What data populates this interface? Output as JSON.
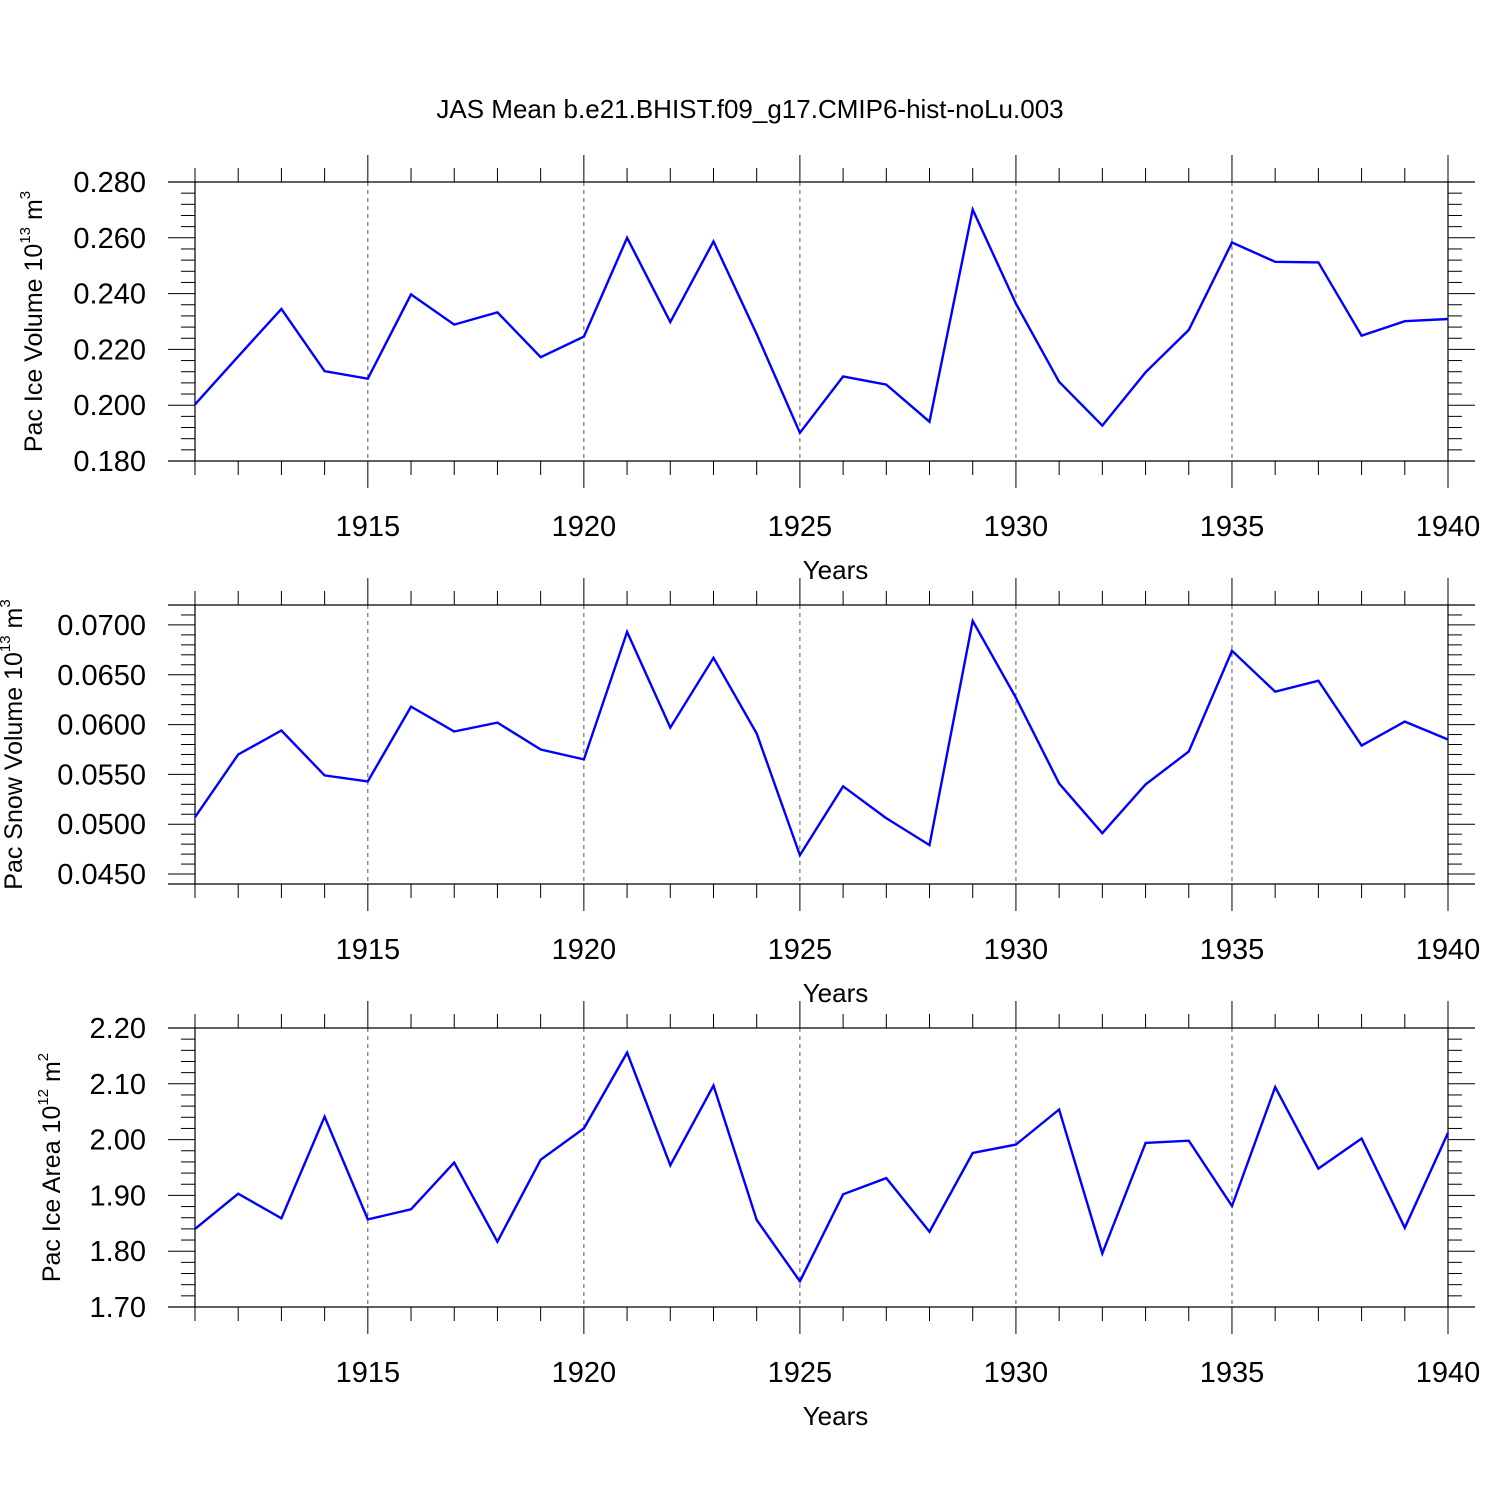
{
  "title": "JAS Mean b.e21.BHIST.f09_g17.CMIP6-hist-noLu.003",
  "colors": {
    "line": "#0000ff",
    "axis": "#000000",
    "grid": "#555555"
  },
  "chart_data": [
    {
      "type": "line",
      "xlabel": "Years",
      "ylabel_main": "Pac Ice Volume 10",
      "ylabel_exp": "13",
      "ylabel_unit": " m",
      "ylabel_unit_exp": "3",
      "xlim": [
        1911,
        1940
      ],
      "ylim": [
        0.18,
        0.28
      ],
      "yticks": [
        0.18,
        0.2,
        0.22,
        0.24,
        0.26,
        0.28
      ],
      "ytick_labels": [
        "0.180",
        "0.200",
        "0.220",
        "0.240",
        "0.260",
        "0.280"
      ],
      "xticks": [
        1915,
        1920,
        1925,
        1930,
        1935,
        1940
      ],
      "xtick_labels": [
        "1915",
        "1920",
        "1925",
        "1930",
        "1935",
        "1940"
      ],
      "grid": "vertical dashed at major x ticks",
      "x": [
        1911,
        1912,
        1913,
        1914,
        1915,
        1916,
        1917,
        1918,
        1919,
        1920,
        1921,
        1922,
        1923,
        1924,
        1925,
        1926,
        1927,
        1928,
        1929,
        1930,
        1931,
        1932,
        1933,
        1934,
        1935,
        1936,
        1937,
        1938,
        1939,
        1940
      ],
      "y": [
        0.2003,
        0.2175,
        0.2345,
        0.2122,
        0.2095,
        0.2397,
        0.2289,
        0.2333,
        0.2172,
        0.2246,
        0.26,
        0.2298,
        0.2587,
        0.2255,
        0.1901,
        0.2103,
        0.2074,
        0.1941,
        0.2701,
        0.2364,
        0.2084,
        0.1927,
        0.2118,
        0.227,
        0.2583,
        0.2514,
        0.2512,
        0.2249,
        0.2301,
        0.2309
      ]
    },
    {
      "type": "line",
      "xlabel": "Years",
      "ylabel_main": "Pac Snow Volume 10",
      "ylabel_exp": "13",
      "ylabel_unit": " m",
      "ylabel_unit_exp": "3",
      "xlim": [
        1911,
        1940
      ],
      "ylim": [
        0.044,
        0.072
      ],
      "yticks": [
        0.045,
        0.05,
        0.055,
        0.06,
        0.065,
        0.07
      ],
      "ytick_labels": [
        "0.0450",
        "0.0500",
        "0.0550",
        "0.0600",
        "0.0650",
        "0.0700"
      ],
      "xticks": [
        1915,
        1920,
        1925,
        1930,
        1935,
        1940
      ],
      "xtick_labels": [
        "1915",
        "1920",
        "1925",
        "1930",
        "1935",
        "1940"
      ],
      "grid": "vertical dashed at major x ticks",
      "x": [
        1911,
        1912,
        1913,
        1914,
        1915,
        1916,
        1917,
        1918,
        1919,
        1920,
        1921,
        1922,
        1923,
        1924,
        1925,
        1926,
        1927,
        1928,
        1929,
        1930,
        1931,
        1932,
        1933,
        1934,
        1935,
        1936,
        1937,
        1938,
        1939,
        1940
      ],
      "y": [
        0.0507,
        0.057,
        0.0594,
        0.0549,
        0.0543,
        0.0618,
        0.0593,
        0.0602,
        0.0575,
        0.0565,
        0.0693,
        0.0597,
        0.0667,
        0.0591,
        0.0469,
        0.0538,
        0.0506,
        0.0479,
        0.0704,
        0.0627,
        0.0541,
        0.0491,
        0.054,
        0.0573,
        0.0674,
        0.0633,
        0.0644,
        0.0579,
        0.0603,
        0.0585
      ]
    },
    {
      "type": "line",
      "xlabel": "Years",
      "ylabel_main": "Pac Ice Area 10",
      "ylabel_exp": "12",
      "ylabel_unit": " m",
      "ylabel_unit_exp": "2",
      "xlim": [
        1911,
        1940
      ],
      "ylim": [
        1.7,
        2.2
      ],
      "yticks": [
        1.7,
        1.8,
        1.9,
        2.0,
        2.1,
        2.2
      ],
      "ytick_labels": [
        "1.70",
        "1.80",
        "1.90",
        "2.00",
        "2.10",
        "2.20"
      ],
      "xticks": [
        1915,
        1920,
        1925,
        1930,
        1935,
        1940
      ],
      "xtick_labels": [
        "1915",
        "1920",
        "1925",
        "1930",
        "1935",
        "1940"
      ],
      "grid": "vertical dashed at major x ticks",
      "x": [
        1911,
        1912,
        1913,
        1914,
        1915,
        1916,
        1917,
        1918,
        1919,
        1920,
        1921,
        1922,
        1923,
        1924,
        1925,
        1926,
        1927,
        1928,
        1929,
        1930,
        1931,
        1932,
        1933,
        1934,
        1935,
        1936,
        1937,
        1938,
        1939,
        1940
      ],
      "y": [
        1.84,
        1.903,
        1.859,
        2.041,
        1.857,
        1.875,
        1.959,
        1.817,
        1.964,
        2.02,
        2.156,
        1.954,
        2.097,
        1.856,
        1.746,
        1.902,
        1.931,
        1.835,
        1.976,
        1.991,
        2.054,
        1.796,
        1.994,
        1.998,
        1.881,
        2.094,
        1.948,
        2.002,
        1.842,
        2.012
      ]
    }
  ]
}
